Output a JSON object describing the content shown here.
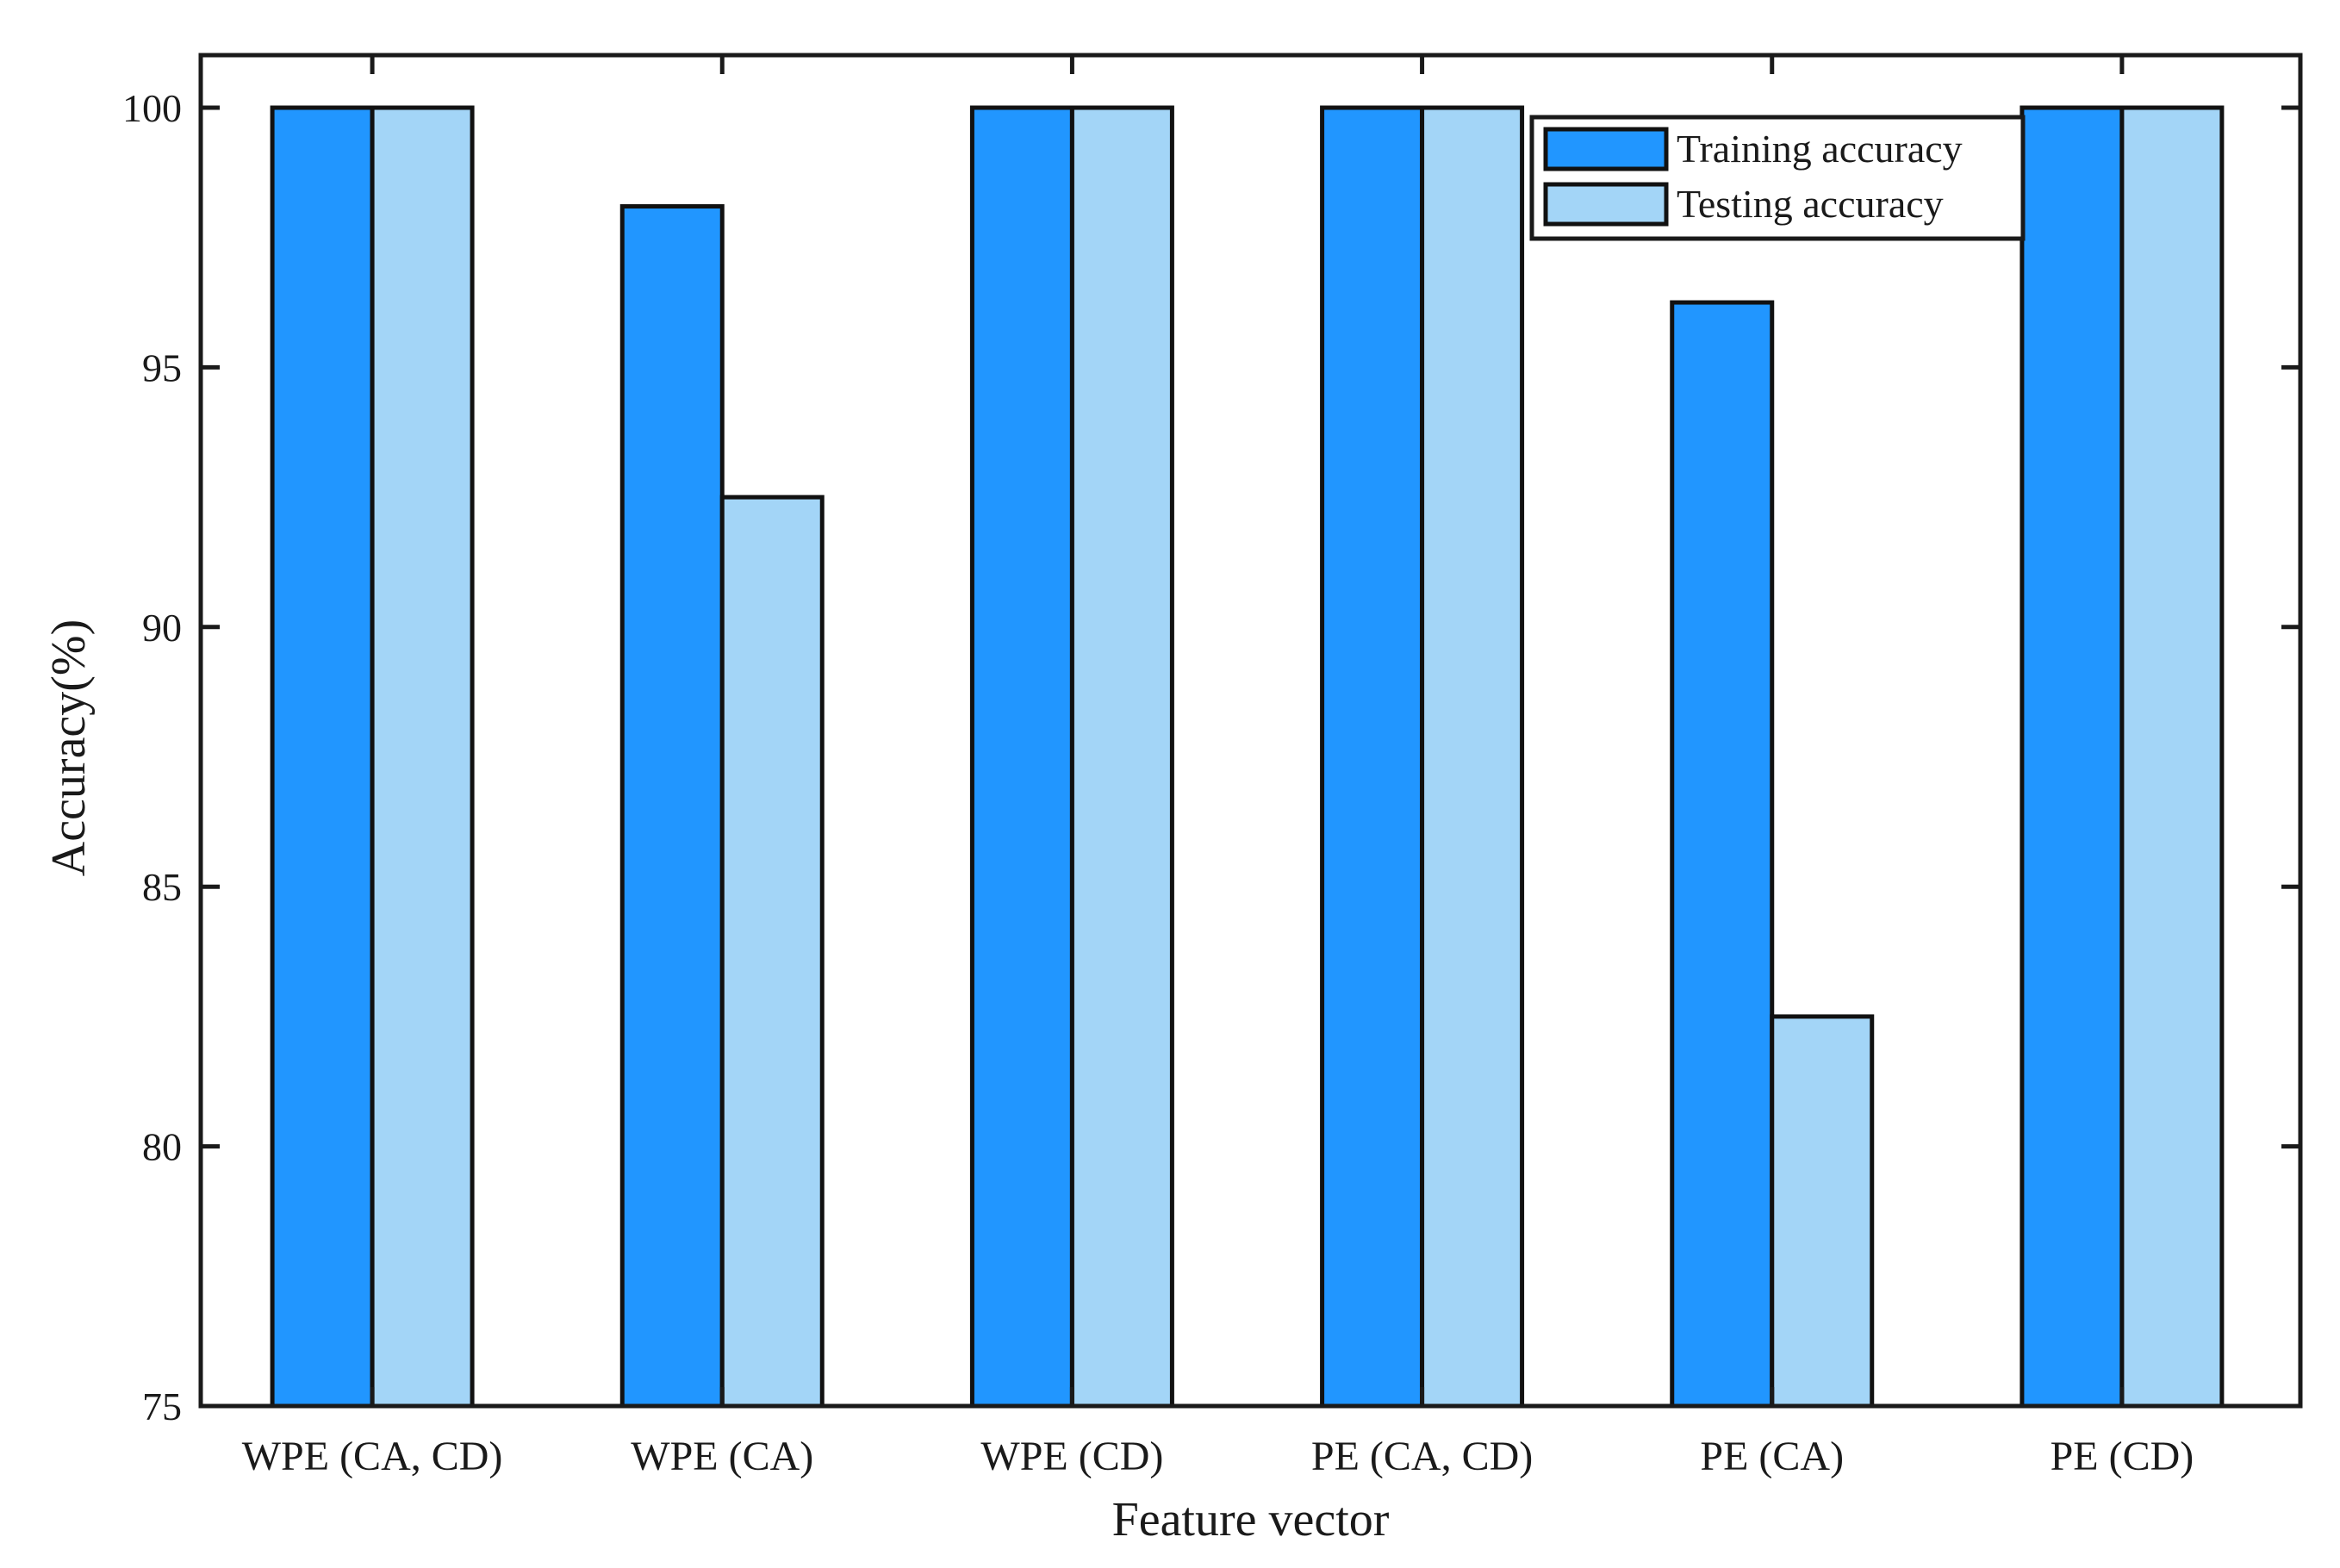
{
  "chart_data": {
    "type": "bar",
    "title": "",
    "xlabel": "Feature vector",
    "ylabel": "Accuracy(%)",
    "ylim": [
      75,
      100
    ],
    "yticks": [
      75,
      80,
      85,
      90,
      95,
      100
    ],
    "grid": false,
    "legend_position": "top-right",
    "categories": [
      "WPE (CA, CD)",
      "WPE (CA)",
      "WPE (CD)",
      "PE (CA, CD)",
      "PE (CA)",
      "PE (CD)"
    ],
    "series": [
      {
        "name": "Training accuracy",
        "color": "#2196FF",
        "values": [
          100,
          98.1,
          100,
          100,
          96.25,
          100
        ]
      },
      {
        "name": "Testing accuracy",
        "color": "#A3D5F7",
        "values": [
          100,
          92.5,
          100,
          100,
          82.5,
          100
        ]
      }
    ]
  }
}
